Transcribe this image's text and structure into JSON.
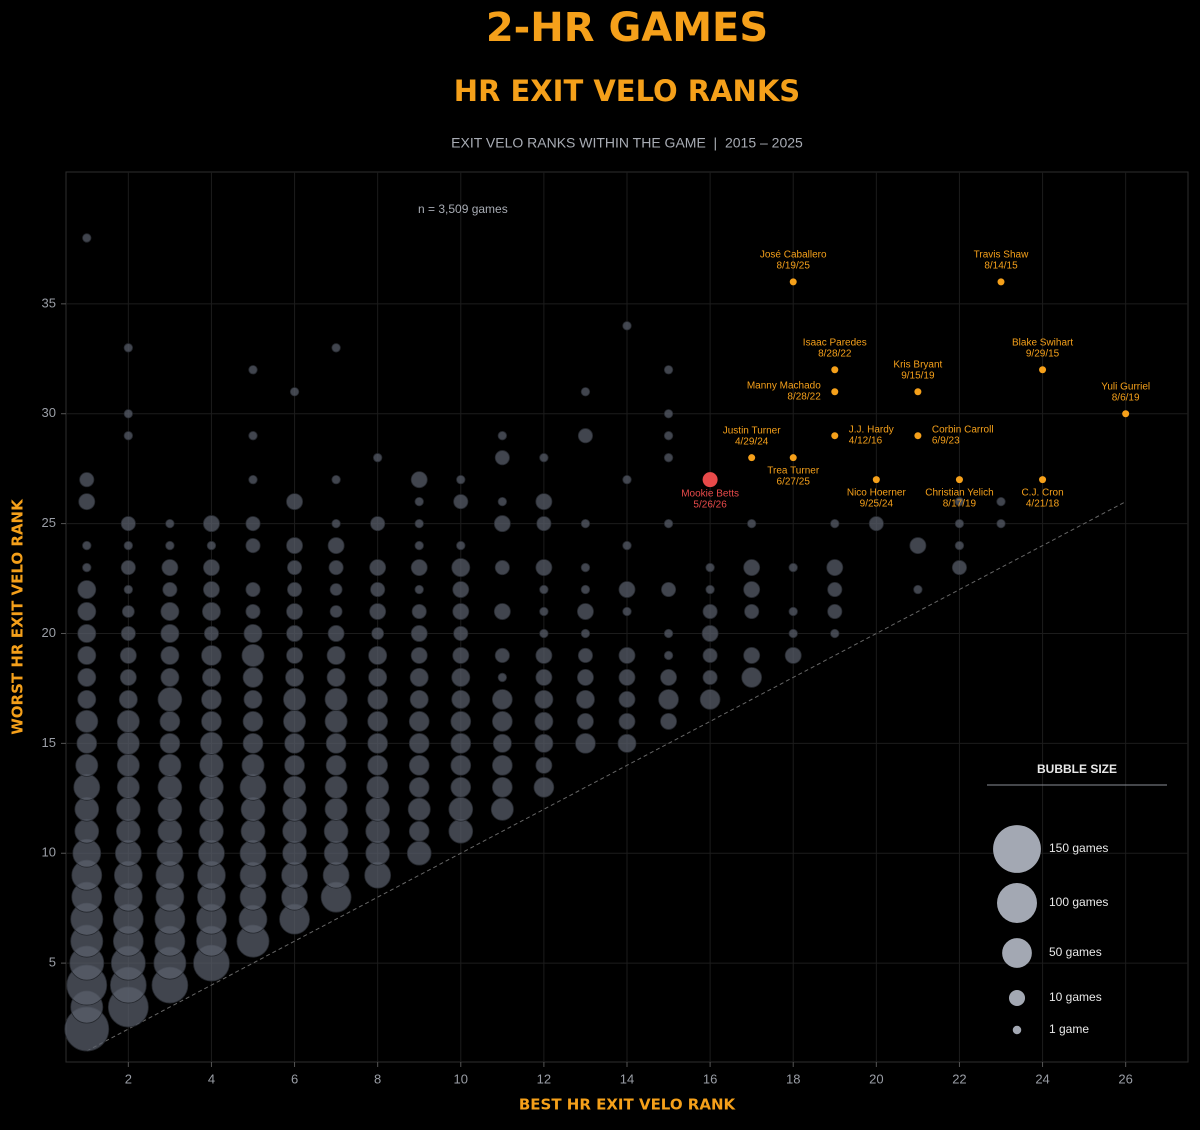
{
  "chart_data": {
    "type": "bubble",
    "title": "2-HR GAMES",
    "subtitle": "HR EXIT VELO RANKS",
    "caption": "EXIT VELO RANKS WITHIN THE GAME  |  2015 – 2025",
    "annotation": "n = 3,509 games",
    "x_label": "BEST HR EXIT VELO RANK",
    "y_label": "WORST HR EXIT VELO RANK",
    "xlim": [
      0.5,
      27.5
    ],
    "ylim": [
      0.5,
      41
    ],
    "xticks": [
      2,
      4,
      6,
      8,
      10,
      12,
      14,
      16,
      18,
      20,
      22,
      24,
      26
    ],
    "yticks": [
      5,
      10,
      15,
      20,
      25,
      30,
      35
    ],
    "grid": true,
    "series": [
      {
        "color": "#5a606c",
        "x": [
          1,
          1,
          1,
          1,
          1,
          1,
          1,
          1,
          1,
          1,
          1,
          1,
          1,
          1,
          1,
          1,
          1,
          1,
          1,
          1,
          1,
          1,
          1,
          1,
          1,
          1,
          2,
          2,
          2,
          2,
          2,
          2,
          2,
          2,
          2,
          2,
          2,
          2,
          2,
          2,
          2,
          2,
          2,
          2,
          2,
          2,
          2,
          2,
          2,
          2,
          2,
          2,
          3,
          3,
          3,
          3,
          3,
          3,
          3,
          3,
          3,
          3,
          3,
          3,
          3,
          3,
          3,
          3,
          3,
          3,
          3,
          3,
          3,
          3,
          4,
          4,
          4,
          4,
          4,
          4,
          4,
          4,
          4,
          4,
          4,
          4,
          4,
          4,
          4,
          4,
          4,
          4,
          4,
          4,
          4,
          5,
          5,
          5,
          5,
          5,
          5,
          5,
          5,
          5,
          5,
          5,
          5,
          5,
          5,
          5,
          5,
          5,
          5,
          5,
          5,
          5,
          5,
          6,
          6,
          6,
          6,
          6,
          6,
          6,
          6,
          6,
          6,
          6,
          6,
          6,
          6,
          6,
          6,
          6,
          6,
          6,
          6,
          7,
          7,
          7,
          7,
          7,
          7,
          7,
          7,
          7,
          7,
          7,
          7,
          7,
          7,
          7,
          7,
          7,
          7,
          7,
          7,
          8,
          8,
          8,
          8,
          8,
          8,
          8,
          8,
          8,
          8,
          8,
          8,
          8,
          8,
          8,
          8,
          8,
          9,
          9,
          9,
          9,
          9,
          9,
          9,
          9,
          9,
          9,
          9,
          9,
          9,
          9,
          9,
          9,
          9,
          9,
          10,
          10,
          10,
          10,
          10,
          10,
          10,
          10,
          10,
          10,
          10,
          10,
          10,
          10,
          10,
          10,
          11,
          11,
          11,
          11,
          11,
          11,
          11,
          11,
          11,
          11,
          11,
          11,
          11,
          11,
          12,
          12,
          12,
          12,
          12,
          12,
          12,
          12,
          12,
          12,
          12,
          12,
          12,
          12,
          13,
          13,
          13,
          13,
          13,
          13,
          13,
          13,
          13,
          13,
          13,
          13,
          14,
          14,
          14,
          14,
          14,
          14,
          14,
          14,
          14,
          14,
          15,
          15,
          15,
          15,
          15,
          15,
          15,
          15,
          15,
          15,
          15,
          16,
          16,
          16,
          16,
          16,
          16,
          16,
          17,
          17,
          17,
          17,
          17,
          17,
          18,
          18,
          18,
          18,
          19,
          19,
          19,
          19,
          19,
          20,
          21,
          21,
          22,
          22,
          22,
          22,
          23,
          23
        ],
        "y": [
          2,
          3,
          4,
          5,
          6,
          7,
          8,
          9,
          10,
          11,
          12,
          13,
          14,
          15,
          16,
          17,
          18,
          19,
          20,
          21,
          22,
          23,
          24,
          26,
          27,
          38,
          3,
          4,
          5,
          6,
          7,
          8,
          9,
          10,
          11,
          12,
          13,
          14,
          15,
          16,
          17,
          18,
          19,
          20,
          21,
          22,
          23,
          24,
          25,
          29,
          30,
          33,
          4,
          5,
          6,
          7,
          8,
          9,
          10,
          11,
          12,
          13,
          14,
          15,
          16,
          17,
          18,
          19,
          20,
          21,
          22,
          23,
          24,
          25,
          5,
          6,
          7,
          8,
          9,
          10,
          11,
          12,
          13,
          14,
          15,
          16,
          17,
          18,
          19,
          20,
          21,
          22,
          23,
          24,
          25,
          6,
          7,
          8,
          9,
          10,
          11,
          12,
          13,
          14,
          15,
          16,
          17,
          18,
          19,
          20,
          21,
          22,
          24,
          25,
          27,
          29,
          32,
          7,
          8,
          9,
          10,
          11,
          12,
          13,
          14,
          15,
          16,
          17,
          18,
          19,
          20,
          21,
          22,
          23,
          24,
          26,
          31,
          8,
          9,
          10,
          11,
          12,
          13,
          14,
          15,
          16,
          17,
          18,
          19,
          20,
          21,
          22,
          23,
          24,
          25,
          27,
          33,
          9,
          10,
          11,
          12,
          13,
          14,
          15,
          16,
          17,
          18,
          19,
          20,
          21,
          22,
          23,
          25,
          28,
          10,
          11,
          12,
          13,
          14,
          15,
          16,
          17,
          18,
          19,
          20,
          21,
          22,
          23,
          24,
          25,
          26,
          27,
          11,
          12,
          13,
          14,
          15,
          16,
          17,
          18,
          19,
          20,
          21,
          22,
          23,
          24,
          26,
          27,
          12,
          13,
          14,
          15,
          16,
          17,
          18,
          19,
          21,
          23,
          25,
          26,
          28,
          29,
          13,
          14,
          15,
          16,
          17,
          18,
          19,
          20,
          21,
          22,
          23,
          25,
          26,
          28,
          15,
          16,
          17,
          18,
          19,
          20,
          21,
          22,
          23,
          25,
          29,
          31,
          15,
          16,
          17,
          18,
          19,
          21,
          22,
          24,
          27,
          34,
          16,
          17,
          18,
          19,
          20,
          22,
          25,
          28,
          29,
          30,
          32,
          17,
          18,
          19,
          20,
          21,
          22,
          23,
          18,
          19,
          21,
          22,
          23,
          25,
          19,
          20,
          21,
          23,
          20,
          21,
          22,
          23,
          25,
          25,
          22,
          24,
          23,
          24,
          25,
          26,
          25,
          26
        ],
        "size": [
          124,
          60,
          100,
          69,
          60,
          60,
          51,
          51,
          43,
          29,
          29,
          36,
          24,
          18,
          24,
          14,
          14,
          14,
          14,
          14,
          14,
          1,
          1,
          10,
          7,
          1,
          100,
          78,
          69,
          51,
          51,
          43,
          43,
          36,
          29,
          29,
          24,
          24,
          24,
          24,
          14,
          10,
          10,
          7,
          4,
          1,
          7,
          1,
          7,
          1,
          1,
          1,
          78,
          60,
          51,
          51,
          43,
          43,
          36,
          29,
          29,
          29,
          24,
          18,
          18,
          29,
          14,
          14,
          14,
          14,
          7,
          10,
          1,
          1,
          78,
          51,
          51,
          43,
          43,
          36,
          29,
          29,
          29,
          29,
          24,
          18,
          18,
          14,
          18,
          7,
          14,
          10,
          10,
          1,
          10,
          60,
          43,
          36,
          36,
          36,
          29,
          29,
          36,
          24,
          18,
          18,
          14,
          18,
          24,
          14,
          7,
          7,
          7,
          7,
          1,
          1,
          1,
          51,
          36,
          36,
          29,
          29,
          29,
          24,
          18,
          18,
          24,
          24,
          14,
          10,
          10,
          10,
          7,
          7,
          10,
          10,
          1,
          51,
          36,
          29,
          29,
          24,
          24,
          18,
          18,
          24,
          24,
          14,
          14,
          10,
          4,
          4,
          7,
          10,
          1,
          1,
          1,
          36,
          29,
          29,
          29,
          24,
          18,
          18,
          18,
          18,
          14,
          14,
          4,
          10,
          7,
          10,
          7,
          1,
          29,
          18,
          24,
          18,
          18,
          18,
          18,
          14,
          14,
          10,
          10,
          7,
          1,
          10,
          1,
          1,
          1,
          10,
          29,
          29,
          18,
          18,
          18,
          18,
          14,
          14,
          10,
          7,
          10,
          10,
          14,
          1,
          7,
          1,
          24,
          18,
          18,
          14,
          18,
          18,
          1,
          7,
          10,
          7,
          10,
          1,
          7,
          1,
          18,
          10,
          14,
          14,
          14,
          10,
          10,
          1,
          1,
          1,
          10,
          7,
          10,
          1,
          18,
          10,
          14,
          10,
          7,
          1,
          10,
          1,
          1,
          1,
          7,
          1,
          14,
          10,
          10,
          10,
          10,
          1,
          10,
          1,
          1,
          1,
          10,
          18,
          10,
          1,
          1,
          7,
          1,
          1,
          1,
          1,
          1,
          18,
          7,
          7,
          10,
          7,
          1,
          1,
          18,
          10,
          7,
          10,
          10,
          1,
          10,
          1,
          1,
          1,
          1,
          7,
          7,
          10,
          1,
          7,
          1,
          10,
          7,
          1,
          1,
          1,
          1,
          1
        ]
      },
      {
        "color": "#f5a01a",
        "x": [
          18,
          23,
          19,
          24,
          19,
          21,
          26,
          17,
          19,
          21,
          18,
          20,
          22,
          24
        ],
        "y": [
          36,
          36,
          32,
          32,
          31,
          31,
          30,
          28,
          29,
          29,
          28,
          27,
          27,
          27
        ],
        "labels": [
          {
            "name": "José Caballero",
            "date": "8/19/25"
          },
          {
            "name": "Travis Shaw",
            "date": "8/14/15"
          },
          {
            "name": "Isaac Paredes",
            "date": "8/28/22"
          },
          {
            "name": "Blake Swihart",
            "date": "9/29/15"
          },
          {
            "name": "Manny Machado",
            "date": "8/28/22"
          },
          {
            "name": "Kris Bryant",
            "date": "9/15/19"
          },
          {
            "name": "Yuli Gurriel",
            "date": "8/6/19"
          },
          {
            "name": "Justin Turner",
            "date": "4/29/24"
          },
          {
            "name": "J.J. Hardy",
            "date": "4/12/16"
          },
          {
            "name": "Corbin Carroll",
            "date": "6/9/23"
          },
          {
            "name": "Trea Turner",
            "date": "6/27/25"
          },
          {
            "name": "Nico Hoerner",
            "date": "9/25/24"
          },
          {
            "name": "Christian Yelich",
            "date": "8/17/19"
          },
          {
            "name": "C.J. Cron",
            "date": "4/21/18"
          }
        ]
      },
      {
        "color": "#e84a4a",
        "x": [
          16
        ],
        "y": [
          27
        ],
        "labels": [
          {
            "name": "Mookie Betts",
            "date": "5/26/26"
          }
        ]
      }
    ],
    "size_legend": {
      "title": "BUBBLE SIZE",
      "entries": [
        {
          "value": 150,
          "label": "150 games"
        },
        {
          "value": 100,
          "label": "100 games"
        },
        {
          "value": 50,
          "label": "50 games"
        },
        {
          "value": 10,
          "label": "10 games"
        },
        {
          "value": 1,
          "label": "1 game"
        }
      ]
    }
  }
}
